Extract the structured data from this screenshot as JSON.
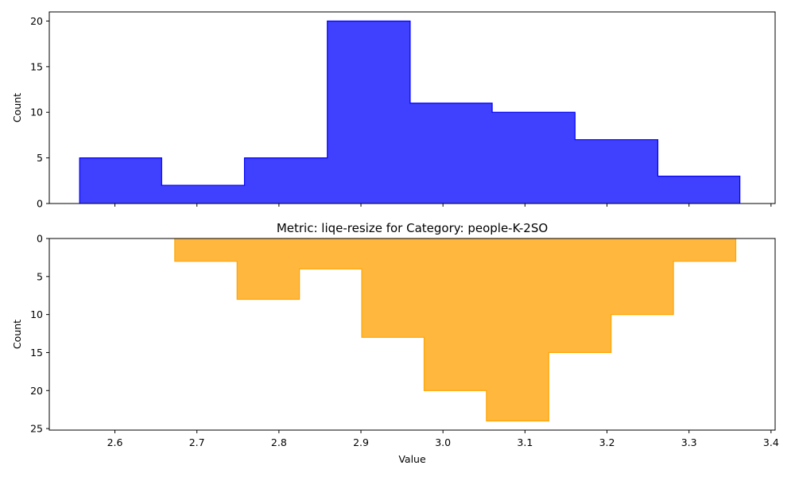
{
  "chart_data": [
    {
      "type": "histogram",
      "title": "",
      "xlabel": "",
      "ylabel": "Count",
      "color": "#0000ff",
      "fill": "#4040ff",
      "y_inverted": false,
      "xlim": [
        2.52,
        3.405
      ],
      "ylim": [
        0,
        21
      ],
      "x_ticks": [
        2.6,
        2.7,
        2.8,
        2.9,
        3.0,
        3.1,
        3.2,
        3.3,
        3.4
      ],
      "y_ticks": [
        0,
        5,
        10,
        15,
        20
      ],
      "bins": [
        {
          "x0": 2.557,
          "x1": 2.657,
          "count": 5
        },
        {
          "x0": 2.657,
          "x1": 2.758,
          "count": 2
        },
        {
          "x0": 2.758,
          "x1": 2.859,
          "count": 5
        },
        {
          "x0": 2.859,
          "x1": 2.96,
          "count": 20
        },
        {
          "x0": 2.96,
          "x1": 3.06,
          "count": 11
        },
        {
          "x0": 3.06,
          "x1": 3.161,
          "count": 10
        },
        {
          "x0": 3.161,
          "x1": 3.262,
          "count": 7
        },
        {
          "x0": 3.262,
          "x1": 3.362,
          "count": 3
        }
      ]
    },
    {
      "type": "histogram",
      "title": "Metric: liqe-resize for Category: people-K-2SO",
      "xlabel": "Value",
      "ylabel": "Count",
      "color": "#ffa500",
      "fill": "#ffb73d",
      "y_inverted": true,
      "xlim": [
        2.52,
        3.405
      ],
      "ylim": [
        0,
        25.2
      ],
      "x_ticks": [
        2.6,
        2.7,
        2.8,
        2.9,
        3.0,
        3.1,
        3.2,
        3.3,
        3.4
      ],
      "x_tick_labels": [
        "2.6",
        "2.7",
        "2.8",
        "2.9",
        "3.0",
        "3.1",
        "3.2",
        "3.3",
        "3.4"
      ],
      "y_ticks": [
        0,
        5,
        10,
        15,
        20,
        25
      ],
      "bins": [
        {
          "x0": 2.673,
          "x1": 2.749,
          "count": 3
        },
        {
          "x0": 2.749,
          "x1": 2.825,
          "count": 8
        },
        {
          "x0": 2.825,
          "x1": 2.901,
          "count": 4
        },
        {
          "x0": 2.901,
          "x1": 2.977,
          "count": 13
        },
        {
          "x0": 2.977,
          "x1": 3.053,
          "count": 20
        },
        {
          "x0": 3.053,
          "x1": 3.129,
          "count": 24
        },
        {
          "x0": 3.129,
          "x1": 3.205,
          "count": 15
        },
        {
          "x0": 3.205,
          "x1": 3.281,
          "count": 10
        },
        {
          "x0": 3.281,
          "x1": 3.357,
          "count": 3
        }
      ]
    }
  ]
}
